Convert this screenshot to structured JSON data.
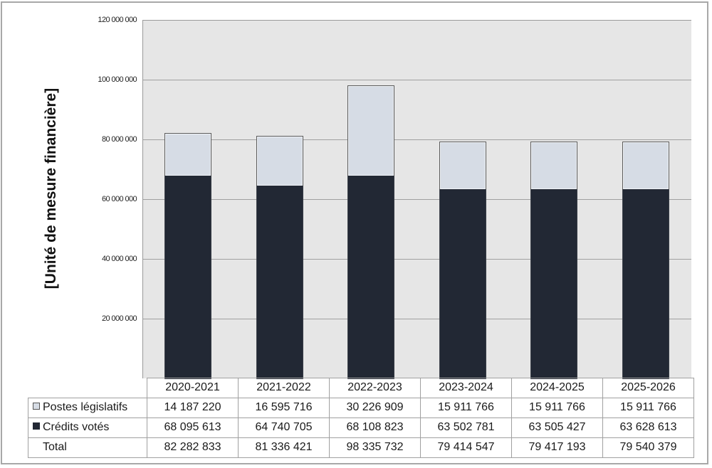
{
  "chart_data": {
    "type": "bar",
    "stacked": true,
    "title": "",
    "xlabel": "",
    "ylabel": "[Unité de mesure financière]",
    "ylim": [
      0,
      120000000
    ],
    "yticks": [
      "20 000 000",
      "40 000 000",
      "60 000 000",
      "80 000 000",
      "100 000 000",
      "120 000 000"
    ],
    "ytick_values": [
      20000000,
      40000000,
      60000000,
      80000000,
      100000000,
      120000000
    ],
    "grid": true,
    "legend_position": "data-table",
    "categories": [
      "2020-2021",
      "2021-2022",
      "2022-2023",
      "2023-2024",
      "2024-2025",
      "2025-2026"
    ],
    "series": [
      {
        "name": "Postes législatifs",
        "color": "#d6dce5",
        "values": [
          14187220,
          16595716,
          30226909,
          15911766,
          15911766,
          15911766
        ]
      },
      {
        "name": "Crédits votés",
        "color": "#222834",
        "values": [
          68095613,
          64740705,
          68108823,
          63502781,
          63505427,
          63628613
        ]
      }
    ],
    "totals": [
      82282833,
      81336421,
      98335732,
      79414547,
      79417193,
      79540379
    ]
  },
  "axis": {
    "ylabel": "[Unité de mesure financière]",
    "ticks": [
      "20 000 000",
      "40 000 000",
      "60 000 000",
      "80 000 000",
      "100 000 000",
      "120 000 000"
    ]
  },
  "table": {
    "headers": [
      "2020-2021",
      "2021-2022",
      "2022-2023",
      "2023-2024",
      "2024-2025",
      "2025-2026"
    ],
    "rows": [
      {
        "label": "Postes législatifs",
        "legend": "light",
        "values": [
          "14 187 220",
          "16 595 716",
          "30 226 909",
          "15 911 766",
          "15 911 766",
          "15 911 766"
        ]
      },
      {
        "label": "Crédits votés",
        "legend": "dark",
        "values": [
          "68 095 613",
          "64 740 705",
          "68 108 823",
          "63 502 781",
          "63 505 427",
          "63 628 613"
        ]
      },
      {
        "label": "Total",
        "legend": "none",
        "values": [
          "82 282 833",
          "81 336 421",
          "98 335 732",
          "79 414 547",
          "79 417 193",
          "79 540 379"
        ]
      }
    ]
  },
  "colors": {
    "postes_legislatifs": "#d6dce5",
    "credits_votes": "#222834",
    "plot_background": "#e6e6e6",
    "gridline": "#a0a0a0"
  }
}
